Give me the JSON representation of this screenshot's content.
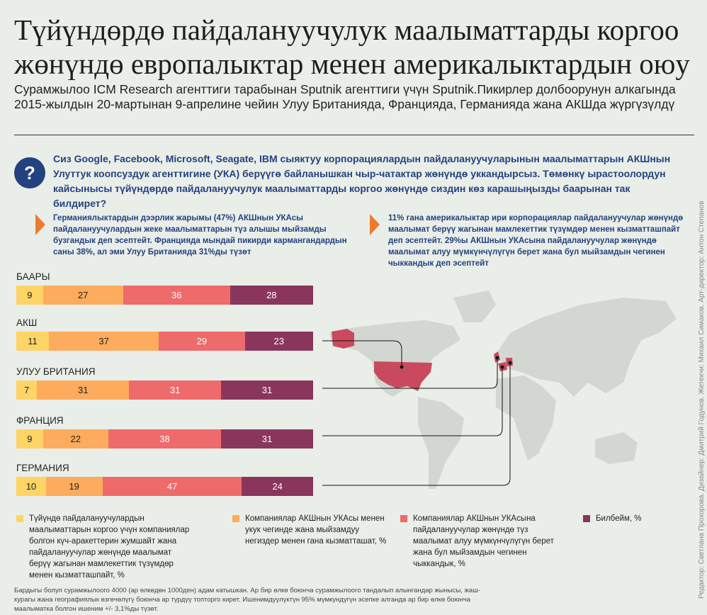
{
  "title": "Түйүндөрдө пайдалануучулук маалыматтарды коргоо жөнүндө европалыктар менен америкалыктардын оюу",
  "subtitle": "Сурамжылоо ICM Research агенттиги тарабынан Sputnik агенттиги үчүн Sputnik.Пикирлер долбоорунун алкагында 2015-жылдын 20-мартынан 9-апрелине чейин Улуу Британияда, Францияда, Германияда жана АКШда жүргүзүлдү",
  "question_icon": "question-mark-icon",
  "question_symbol": "?",
  "question": "Сиз Google, Facebook, Microsoft, Seagate, IBM сыяктуу корпорациялардын пайдалануучуларынын маалыматтарын АКШнын Улуттук коопсуздук агенттигине (УКА) берүүгө байланышкан чыр-чатактар жөнүндө уккандырсыз. Төмөнкү ырастоолордун кайсынысы түйүндөрдө пайдалануучулук маалыматтарды коргоо жөнүндө сиздин көз карашыңызды баарынан так билдирет?",
  "notes": [
    "Германиялыктардын дээрлик жарымы (47%) АКШнын УКАсы пайдалануучулардын жеке маалыматтарын түз алышы мыйзамды бузгандык деп эсептейт. Францияда мындай пикирди кармангандардын саны 38%, ал эми Улуу Британияда 31%ды түзөт",
    "11% гана америкалыктар ири корпорациялар пайдалануучулар жөнүндө маалымат берүү жагынан мамлекеттик түзүмдөр менен кызматташпайт деп эсептейт. 29%ы АКШнын УКАсына пайдалануучулар жөнүндө маалымат алуу мүмкүнчүлүгүн берет жана бул мыйзамдын чегинен чыккандык деп эсептейт"
  ],
  "colors": {
    "accent": "#24427f",
    "arrow": "#ee7a2f",
    "s1": "#fed466",
    "s2": "#fdab5c",
    "s3": "#ee6a6b",
    "s4": "#8a365c",
    "map": "#d3d7d1",
    "highlight": "#c94a5e"
  },
  "chart_data": {
    "type": "bar",
    "orientation": "horizontal",
    "stacked": true,
    "unit": "%",
    "categories": [
      "БААРЫ",
      "АКШ",
      "УЛУУ БРИТАНИЯ",
      "ФРАНЦИЯ",
      "ГЕРМАНИЯ"
    ],
    "series": [
      {
        "name": "Түйүндө  пайдалануучулардын маалыматтарын коргоо үчүн компаниялар болгон күч-аракеттерин  жумшайт жана пайдалануучулар жөнүндө маалымат берүү жагынан мамлекеттик түзүмдөр менен кызматташпайт, %",
        "color": "#fed466",
        "values": [
          9,
          11,
          7,
          9,
          10
        ]
      },
      {
        "name": "Компаниялар АКШнын УКАсы менен укук чегинде жана мыйзамдуу негиздер менен гана кызматташат, %",
        "color": "#fdab5c",
        "values": [
          27,
          37,
          31,
          22,
          19
        ]
      },
      {
        "name": "Компаниялар АКШнын УКАсына пайдалануучулар жөнүндө түз маалымат алуу мүмкүнчүлүгүн берет жана бул мыйзамдын чегинен чыккандык, %",
        "color": "#ee6a6b",
        "values": [
          36,
          29,
          31,
          38,
          47
        ]
      },
      {
        "name": "Билбейм, %",
        "color": "#8a365c",
        "values": [
          28,
          23,
          31,
          31,
          24
        ]
      }
    ],
    "legend_position": "bottom"
  },
  "footnote": "Бардыгы болуп сурамжылоого 4000 (ар өлкөдөн 1000ден) адам катышкан. Ар бир өлкө боюнча сурамжылоого тандалып алынгандар жынысы, жаш-курагы жана географиялык өзгөчөлүгү боюнча ар түрдүү топторго кирет. Ишенимдүүлүктүн 95% мүмкүндүгүн эсепке алганда ар бир өлкө боюнча маалыматка болгон ишеним +/- 3,1%ды түзөт.",
  "credits": "Редактор: Светлана Прохорова. Дизайнер: Дмитрий Годунов. Жетекчи: Михаил Симаков. Арт-директор: Антон Степанов"
}
